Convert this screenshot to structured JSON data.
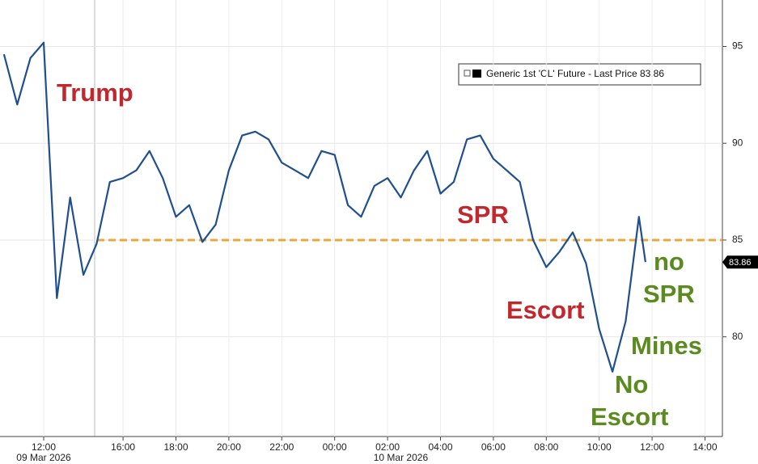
{
  "chart_data": {
    "type": "line",
    "legend": "Generic 1st 'CL' Future - Last Price 83.86",
    "series": [
      {
        "name": "Generic 1st 'CL' Future - Last Price",
        "color": "#1f4f8f",
        "x": [
          "2026-03-09 10:30",
          "2026-03-09 11:00",
          "2026-03-09 11:30",
          "2026-03-09 12:00",
          "2026-03-09 12:30",
          "2026-03-09 13:00",
          "2026-03-09 13:30",
          "2026-03-09 15:00",
          "2026-03-09 15:30",
          "2026-03-09 16:00",
          "2026-03-09 16:30",
          "2026-03-09 17:00",
          "2026-03-09 17:30",
          "2026-03-09 18:00",
          "2026-03-09 18:30",
          "2026-03-09 19:00",
          "2026-03-09 19:30",
          "2026-03-09 20:00",
          "2026-03-09 20:30",
          "2026-03-09 21:00",
          "2026-03-09 21:30",
          "2026-03-09 22:00",
          "2026-03-09 22:30",
          "2026-03-09 23:00",
          "2026-03-09 23:30",
          "2026-03-10 00:00",
          "2026-03-10 00:30",
          "2026-03-10 01:00",
          "2026-03-10 01:30",
          "2026-03-10 02:00",
          "2026-03-10 02:30",
          "2026-03-10 03:00",
          "2026-03-10 03:30",
          "2026-03-10 04:00",
          "2026-03-10 04:30",
          "2026-03-10 05:00",
          "2026-03-10 05:30",
          "2026-03-10 06:00",
          "2026-03-10 06:30",
          "2026-03-10 07:00",
          "2026-03-10 07:30",
          "2026-03-10 08:00",
          "2026-03-10 08:30",
          "2026-03-10 09:00",
          "2026-03-10 09:30",
          "2026-03-10 10:00",
          "2026-03-10 10:30",
          "2026-03-10 11:00",
          "2026-03-10 11:30",
          "2026-03-10 11:45"
        ],
        "values": [
          94.6,
          92.0,
          94.4,
          95.2,
          82.0,
          87.2,
          83.2,
          84.8,
          88.0,
          88.2,
          88.6,
          89.6,
          88.2,
          86.2,
          86.8,
          84.9,
          85.8,
          88.6,
          90.4,
          90.6,
          90.2,
          89.0,
          88.6,
          88.2,
          89.6,
          89.4,
          86.8,
          86.2,
          87.8,
          88.2,
          87.2,
          88.6,
          89.6,
          87.4,
          88.0,
          90.2,
          90.4,
          89.2,
          88.6,
          88.0,
          85.0,
          83.6,
          84.4,
          85.4,
          83.8,
          80.4,
          78.2,
          80.8,
          86.2,
          83.86
        ]
      }
    ],
    "reference_line": {
      "value": 85,
      "color": "#e8a93a"
    },
    "ylim": [
      74.85,
      97.4
    ],
    "yticks": [
      80,
      85,
      90,
      95
    ],
    "xticks": [
      {
        "value": "2026-03-09 12:00",
        "label": "12:00"
      },
      {
        "value": "2026-03-09 16:00",
        "label": "16:00"
      },
      {
        "value": "2026-03-09 18:00",
        "label": "18:00"
      },
      {
        "value": "2026-03-09 20:00",
        "label": "20:00"
      },
      {
        "value": "2026-03-09 22:00",
        "label": "22:00"
      },
      {
        "value": "2026-03-10 00:00",
        "label": "00:00"
      },
      {
        "value": "2026-03-10 02:00",
        "label": "02:00"
      },
      {
        "value": "2026-03-10 04:00",
        "label": "04:00"
      },
      {
        "value": "2026-03-10 06:00",
        "label": "06:00"
      },
      {
        "value": "2026-03-10 08:00",
        "label": "08:00"
      },
      {
        "value": "2026-03-10 10:00",
        "label": "10:00"
      },
      {
        "value": "2026-03-10 12:00",
        "label": "12:00"
      },
      {
        "value": "2026-03-10 14:00",
        "label": "14:00"
      }
    ],
    "date_labels": [
      {
        "value": "2026-03-09 12:00",
        "label": "09 Mar 2026"
      },
      {
        "value": "2026-03-10 02:30",
        "label": "10 Mar 2026"
      }
    ],
    "grid": true,
    "annotations": [
      {
        "lines": [
          "Trump"
        ],
        "color": "#c1272d"
      },
      {
        "lines": [
          "SPR"
        ],
        "color": "#c1272d"
      },
      {
        "lines": [
          "Escort"
        ],
        "color": "#c1272d"
      },
      {
        "lines": [
          "no",
          "SPR"
        ],
        "color": "#5b8a1f"
      },
      {
        "lines": [
          "Mines"
        ],
        "color": "#5b8a1f"
      },
      {
        "lines": [
          "No",
          "Escort"
        ],
        "color": "#5b8a1f"
      }
    ]
  }
}
